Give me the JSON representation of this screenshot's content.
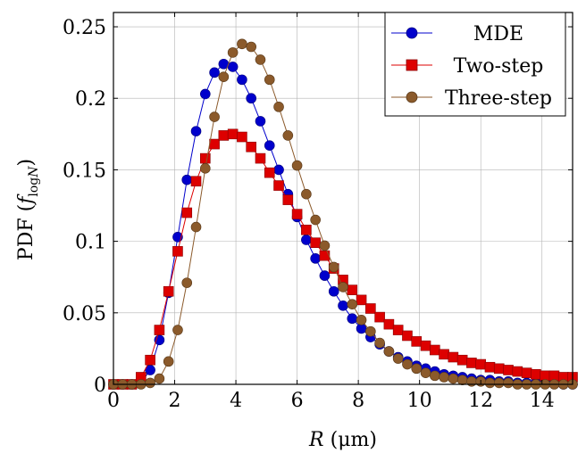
{
  "chart_data": {
    "type": "line",
    "title": "",
    "xlabel": "R (μm)",
    "ylabel": "PDF (f_logN)",
    "ylabel_parts": {
      "prefix": "PDF (",
      "f": "f",
      "sub": "log",
      "script_n": "N",
      "suffix": ")"
    },
    "xlabel_parts": {
      "var": "R",
      "unit": " (μm)"
    },
    "xlim": [
      0,
      15
    ],
    "ylim": [
      0,
      0.26
    ],
    "xticks": [
      0,
      2,
      4,
      6,
      8,
      10,
      12,
      14
    ],
    "xtick_labels": [
      "0",
      "2",
      "4",
      "6",
      "8",
      "10",
      "12",
      "14"
    ],
    "yticks": [
      0,
      0.05,
      0.1,
      0.15,
      0.2,
      0.25
    ],
    "ytick_labels": [
      "0",
      "0.05",
      "0.1",
      "0.15",
      "0.2",
      "0.25"
    ],
    "grid": true,
    "legend_position": "top-right",
    "x": [
      0,
      0.3,
      0.6,
      0.9,
      1.2,
      1.5,
      1.8,
      2.1,
      2.4,
      2.7,
      3.0,
      3.3,
      3.6,
      3.9,
      4.2,
      4.5,
      4.8,
      5.1,
      5.4,
      5.7,
      6.0,
      6.3,
      6.6,
      6.9,
      7.2,
      7.5,
      7.8,
      8.1,
      8.4,
      8.7,
      9.0,
      9.3,
      9.6,
      9.9,
      10.2,
      10.5,
      10.8,
      11.1,
      11.4,
      11.7,
      12.0,
      12.3,
      12.6,
      12.9,
      13.2,
      13.5,
      13.8,
      14.1,
      14.4,
      14.7,
      15.0
    ],
    "series": [
      {
        "name": "MDE",
        "color": "#0000cc",
        "marker": "circle",
        "values": [
          0,
          0,
          0,
          0.001,
          0.01,
          0.031,
          0.064,
          0.103,
          0.143,
          0.177,
          0.203,
          0.218,
          0.224,
          0.222,
          0.213,
          0.2,
          0.184,
          0.167,
          0.15,
          0.133,
          0.117,
          0.101,
          0.088,
          0.076,
          0.065,
          0.055,
          0.046,
          0.039,
          0.033,
          0.028,
          0.023,
          0.019,
          0.016,
          0.013,
          0.011,
          0.009,
          0.007,
          0.006,
          0.005,
          0.004,
          0.003,
          0.003,
          0.002,
          0.002,
          0.001,
          0.001,
          0.001,
          0.001,
          0.001,
          0,
          0
        ]
      },
      {
        "name": "Two-step",
        "color": "#dd0000",
        "marker": "square",
        "values": [
          0,
          0,
          0,
          0.005,
          0.017,
          0.038,
          0.065,
          0.093,
          0.12,
          0.142,
          0.158,
          0.168,
          0.174,
          0.175,
          0.173,
          0.166,
          0.158,
          0.148,
          0.139,
          0.129,
          0.119,
          0.108,
          0.099,
          0.09,
          0.081,
          0.073,
          0.066,
          0.059,
          0.053,
          0.047,
          0.042,
          0.038,
          0.034,
          0.03,
          0.027,
          0.024,
          0.021,
          0.019,
          0.017,
          0.015,
          0.014,
          0.012,
          0.011,
          0.01,
          0.009,
          0.008,
          0.007,
          0.006,
          0.006,
          0.005,
          0.005
        ]
      },
      {
        "name": "Three-step",
        "color": "#8b5a2b",
        "marker": "circle",
        "values": [
          0,
          0,
          0,
          0,
          0.001,
          0.004,
          0.016,
          0.038,
          0.071,
          0.11,
          0.151,
          0.187,
          0.215,
          0.232,
          0.238,
          0.236,
          0.227,
          0.213,
          0.194,
          0.174,
          0.153,
          0.133,
          0.115,
          0.097,
          0.082,
          0.068,
          0.056,
          0.045,
          0.037,
          0.029,
          0.023,
          0.018,
          0.014,
          0.011,
          0.008,
          0.006,
          0.005,
          0.004,
          0.003,
          0.002,
          0.002,
          0.001,
          0.001,
          0.001,
          0,
          0,
          0,
          0,
          0,
          0,
          0
        ]
      }
    ]
  }
}
